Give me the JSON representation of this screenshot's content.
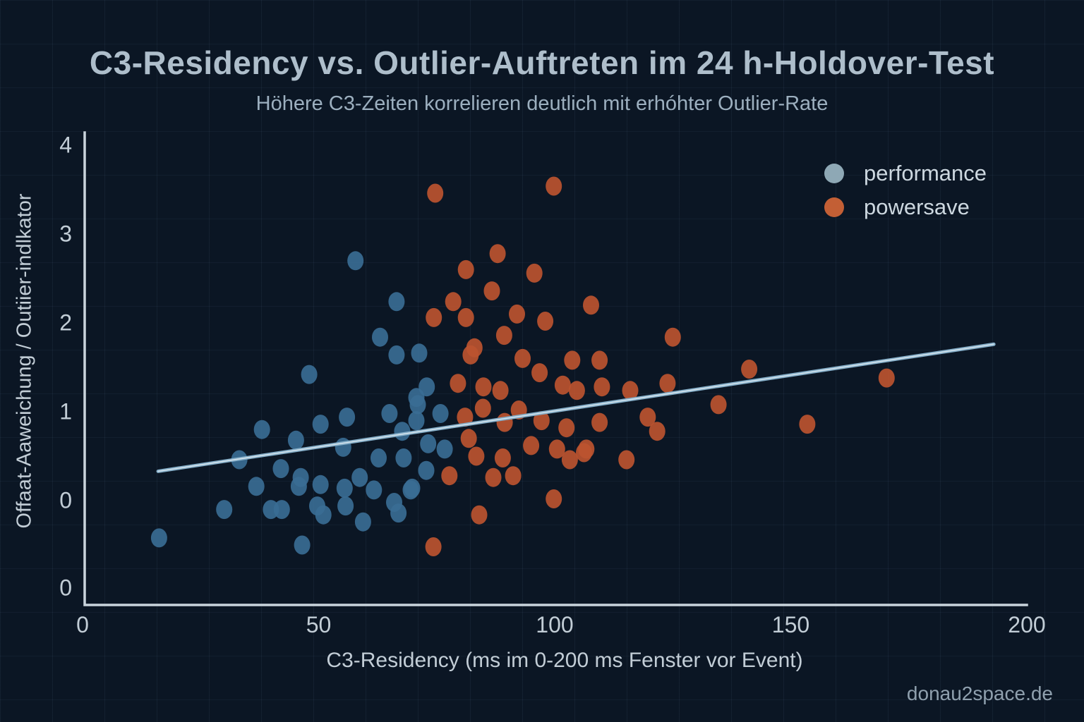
{
  "page": {
    "watermark": "donau2space.de"
  },
  "chart_data": {
    "type": "scatter",
    "title": "C3-Residency vs. Outlier-Auftreten im 24 h-Holdover-Test",
    "subtitle": "Höhere C3-Zeiten korrelieren deutlich mit erhóhter Outlier-Rate",
    "xlabel": "C3-Residency (ms im 0-200 ms Fenster vor Event)",
    "ylabel": "Offaat-Aaweichung / Outiier-indlkator",
    "x_ticks": [
      "0",
      "50",
      "100",
      "150",
      "200"
    ],
    "x_tick_values": [
      0,
      50,
      100,
      150,
      200
    ],
    "y_tick_labels": [
      "4",
      "3",
      "2",
      "1",
      "0",
      "0"
    ],
    "xlim": [
      0,
      200
    ],
    "ylim": [
      -1.17,
      4.14
    ],
    "grid": true,
    "legend_position": "upper right",
    "series": [
      {
        "name": "performance",
        "dot_color": "#3a6d94",
        "legend_color": "#8ea8b5",
        "points": [
          [
            57.8,
            2.7
          ],
          [
            66.5,
            2.24
          ],
          [
            63,
            1.84
          ],
          [
            48,
            1.42
          ],
          [
            56,
            0.94
          ],
          [
            65,
            0.98
          ],
          [
            67.7,
            0.78
          ],
          [
            62.7,
            0.48
          ],
          [
            55.2,
            0.6
          ],
          [
            58.7,
            0.26
          ],
          [
            55.5,
            0.14
          ],
          [
            50.4,
            0.86
          ],
          [
            46.2,
            0.26
          ],
          [
            50.4,
            0.18
          ],
          [
            42,
            0.36
          ],
          [
            45.2,
            0.68
          ],
          [
            38,
            0.8
          ],
          [
            33.2,
            0.46
          ],
          [
            36.8,
            0.16
          ],
          [
            30,
            -0.1
          ],
          [
            16.2,
            -0.42
          ],
          [
            46.5,
            -0.5
          ],
          [
            39.9,
            -0.1
          ],
          [
            42.2,
            -0.1
          ],
          [
            45.8,
            0.16
          ],
          [
            49.7,
            -0.06
          ],
          [
            55.7,
            -0.06
          ],
          [
            59.4,
            -0.24
          ],
          [
            61.7,
            0.12
          ],
          [
            66,
            -0.02
          ],
          [
            69.8,
            0.14
          ],
          [
            66.9,
            -0.14
          ],
          [
            68,
            0.48
          ],
          [
            71,
            1.08
          ],
          [
            75.8,
            0.98
          ],
          [
            70.7,
            0.9
          ],
          [
            73.2,
            0.64
          ],
          [
            76.7,
            0.58
          ],
          [
            72.8,
            0.34
          ],
          [
            69.5,
            0.12
          ],
          [
            66.5,
            1.64
          ],
          [
            71.3,
            1.66
          ],
          [
            70.7,
            1.16
          ],
          [
            72.9,
            1.28
          ],
          [
            51,
            -0.16
          ]
        ]
      },
      {
        "name": "powersave",
        "dot_color": "#bc5430",
        "legend_color": "#c35f35",
        "points": [
          [
            74.7,
            3.46
          ],
          [
            99.8,
            3.54
          ],
          [
            87.9,
            2.78
          ],
          [
            81.2,
            2.6
          ],
          [
            95.7,
            2.56
          ],
          [
            86.7,
            2.36
          ],
          [
            78.5,
            2.24
          ],
          [
            74.4,
            2.06
          ],
          [
            92,
            2.1
          ],
          [
            98,
            2.02
          ],
          [
            107.7,
            2.2
          ],
          [
            125,
            1.84
          ],
          [
            81.2,
            2.06
          ],
          [
            89.3,
            1.86
          ],
          [
            83,
            1.72
          ],
          [
            82.2,
            1.64
          ],
          [
            93.2,
            1.6
          ],
          [
            103.7,
            1.58
          ],
          [
            109.5,
            1.58
          ],
          [
            96.8,
            1.44
          ],
          [
            79.5,
            1.32
          ],
          [
            84.9,
            1.28
          ],
          [
            88.5,
            1.24
          ],
          [
            101.7,
            1.3
          ],
          [
            104.7,
            1.24
          ],
          [
            110,
            1.28
          ],
          [
            116,
            1.24
          ],
          [
            123.9,
            1.32
          ],
          [
            141.2,
            1.48
          ],
          [
            134.7,
            1.08
          ],
          [
            119.7,
            0.94
          ],
          [
            121.7,
            0.78
          ],
          [
            109.5,
            0.88
          ],
          [
            106.7,
            0.58
          ],
          [
            115.2,
            0.46
          ],
          [
            153.5,
            0.86
          ],
          [
            170.3,
            1.38
          ],
          [
            84.8,
            1.04
          ],
          [
            81,
            0.94
          ],
          [
            92.4,
            1.02
          ],
          [
            97.2,
            0.9
          ],
          [
            89.4,
            0.88
          ],
          [
            102.5,
            0.82
          ],
          [
            81.8,
            0.7
          ],
          [
            95,
            0.62
          ],
          [
            100.5,
            0.58
          ],
          [
            103.2,
            0.46
          ],
          [
            106.2,
            0.54
          ],
          [
            83.4,
            0.5
          ],
          [
            89,
            0.48
          ],
          [
            87,
            0.26
          ],
          [
            91.2,
            0.28
          ],
          [
            77.7,
            0.28
          ],
          [
            99.8,
            0.02
          ],
          [
            84,
            -0.16
          ],
          [
            74.3,
            -0.52
          ]
        ]
      }
    ],
    "trendline": {
      "x1": 16,
      "y1": 0.33,
      "x2": 193,
      "y2": 1.76,
      "color": "#86afc9"
    }
  },
  "colors": {
    "background": "#0b1624",
    "axis": "#c9d4dc",
    "title": "#aebecb",
    "subtitle": "#9cafbf",
    "tick_text": "#c2cdd6",
    "legend_text": "#cdd8e0",
    "watermark": "#8fa0ae"
  }
}
